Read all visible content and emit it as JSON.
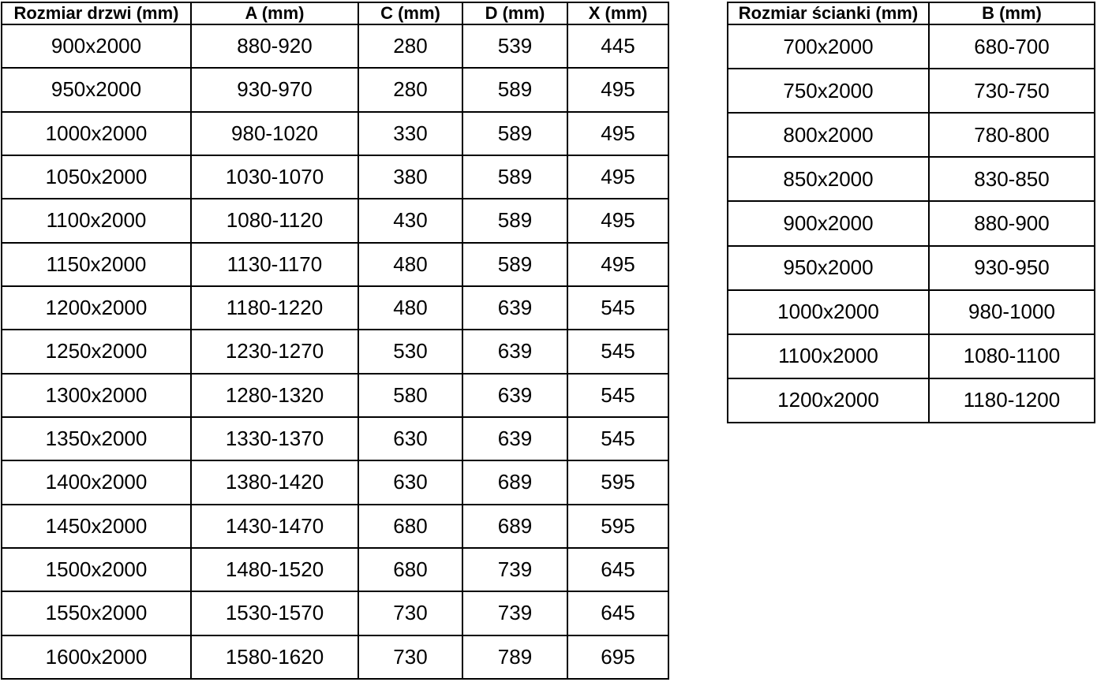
{
  "colors": {
    "background": "#ffffff",
    "border": "#000000",
    "text": "#000000"
  },
  "tables": {
    "door": {
      "headers": [
        "Rozmiar drzwi (mm)",
        "A (mm)",
        "C (mm)",
        "D (mm)",
        "X (mm)"
      ],
      "rows": [
        [
          "900x2000",
          "880-920",
          "280",
          "539",
          "445"
        ],
        [
          "950x2000",
          "930-970",
          "280",
          "589",
          "495"
        ],
        [
          "1000x2000",
          "980-1020",
          "330",
          "589",
          "495"
        ],
        [
          "1050x2000",
          "1030-1070",
          "380",
          "589",
          "495"
        ],
        [
          "1100x2000",
          "1080-1120",
          "430",
          "589",
          "495"
        ],
        [
          "1150x2000",
          "1130-1170",
          "480",
          "589",
          "495"
        ],
        [
          "1200x2000",
          "1180-1220",
          "480",
          "639",
          "545"
        ],
        [
          "1250x2000",
          "1230-1270",
          "530",
          "639",
          "545"
        ],
        [
          "1300x2000",
          "1280-1320",
          "580",
          "639",
          "545"
        ],
        [
          "1350x2000",
          "1330-1370",
          "630",
          "639",
          "545"
        ],
        [
          "1400x2000",
          "1380-1420",
          "630",
          "689",
          "595"
        ],
        [
          "1450x2000",
          "1430-1470",
          "680",
          "689",
          "595"
        ],
        [
          "1500x2000",
          "1480-1520",
          "680",
          "739",
          "645"
        ],
        [
          "1550x2000",
          "1530-1570",
          "730",
          "739",
          "645"
        ],
        [
          "1600x2000",
          "1580-1620",
          "730",
          "789",
          "695"
        ]
      ]
    },
    "wall": {
      "headers": [
        "Rozmiar ścianki (mm)",
        "B (mm)"
      ],
      "rows": [
        [
          "700x2000",
          "680-700"
        ],
        [
          "750x2000",
          "730-750"
        ],
        [
          "800x2000",
          "780-800"
        ],
        [
          "850x2000",
          "830-850"
        ],
        [
          "900x2000",
          "880-900"
        ],
        [
          "950x2000",
          "930-950"
        ],
        [
          "1000x2000",
          "980-1000"
        ],
        [
          "1100x2000",
          "1080-1100"
        ],
        [
          "1200x2000",
          "1180-1200"
        ]
      ]
    }
  }
}
